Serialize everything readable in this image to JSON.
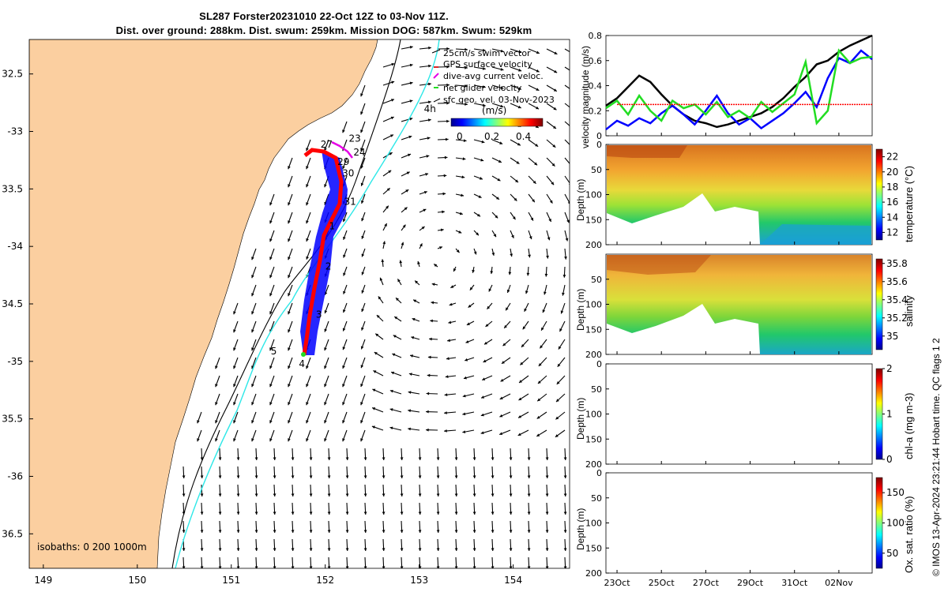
{
  "title_line1": "SL287 Forster20231010 22-Oct 12Z to 03-Nov 11Z.",
  "title_line2": "Dist. over ground: 288km. Dist. swum: 259km. Mission DOG: 587km. Swum: 529km",
  "footnote": "© IMOS 13-Apr-2024 23:21:44 Hobart time. QC flags 1  2",
  "map": {
    "xticks": [
      149,
      150,
      151,
      152,
      153,
      154
    ],
    "xtick_labels": [
      "149",
      "150",
      "151",
      "152",
      "153",
      "154"
    ],
    "yticks": [
      -32.5,
      -33,
      -33.5,
      -34,
      -34.5,
      -35,
      -35.5,
      -36,
      -36.5
    ],
    "ytick_labels": [
      "32.5",
      "-33",
      "33.5",
      "-34",
      "34.5",
      "-35",
      "35.5",
      "-36",
      "36.5"
    ],
    "xlim": [
      148.85,
      154.6
    ],
    "ylim": [
      -36.8,
      -32.2
    ],
    "isobath_label": "isobaths: 0   200  1000m",
    "legend": [
      {
        "label": "25cm/s swim vector",
        "color": "#000000"
      },
      {
        "label": "GPS surface velocity",
        "color": "#d62728"
      },
      {
        "label": "dive-avg current veloc.",
        "color": "#e600e6"
      },
      {
        "label": "net glider velocity",
        "color": "#22dd22"
      },
      {
        "label": "sfc geo. vel. 03-Nov-2023",
        "color": "#000000"
      }
    ],
    "colorbar": {
      "label": "(m/s)",
      "ticks": [
        "0",
        "0.2",
        "0.4"
      ]
    },
    "day_labels": [
      {
        "text": "23",
        "lon": 152.25,
        "lat": -33.09
      },
      {
        "text": "24",
        "lon": 152.3,
        "lat": -33.21
      },
      {
        "text": "27",
        "lon": 151.95,
        "lat": -33.14
      },
      {
        "text": "29",
        "lon": 152.13,
        "lat": -33.29
      },
      {
        "text": "30",
        "lon": 152.18,
        "lat": -33.39
      },
      {
        "text": "31",
        "lon": 152.2,
        "lat": -33.64
      },
      {
        "text": "1",
        "lon": 152.04,
        "lat": -33.85
      },
      {
        "text": "2",
        "lon": 152.0,
        "lat": -34.2
      },
      {
        "text": "3",
        "lon": 151.9,
        "lat": -34.62
      },
      {
        "text": "4",
        "lon": 151.72,
        "lat": -35.05
      },
      {
        "text": "5",
        "lon": 151.42,
        "lat": -34.94
      },
      {
        "text": "4h",
        "lon": 153.05,
        "lat": -32.83
      }
    ]
  },
  "chart_data": [
    {
      "type": "line",
      "title": "",
      "xlabel": "",
      "ylabel": "velocity magnitude (m/s)",
      "ylim": [
        0,
        0.8
      ],
      "yticks": [
        "0",
        "0.2",
        "0.4",
        "0.6",
        "0.8"
      ],
      "xlim_days": [
        22.5,
        34.5
      ],
      "series": [
        {
          "name": "sfc geo. speed",
          "color": "#000000",
          "x": [
            22.5,
            23.0,
            23.5,
            24.0,
            24.5,
            25.0,
            25.5,
            26.0,
            26.5,
            27.0,
            27.5,
            28.0,
            28.5,
            29.0,
            29.5,
            30.0,
            30.5,
            31.0,
            31.5,
            32.0,
            32.5,
            33.0,
            33.5,
            34.0,
            34.5
          ],
          "y": [
            0.24,
            0.3,
            0.39,
            0.48,
            0.43,
            0.33,
            0.24,
            0.17,
            0.12,
            0.1,
            0.07,
            0.09,
            0.12,
            0.15,
            0.18,
            0.23,
            0.3,
            0.39,
            0.47,
            0.57,
            0.6,
            0.67,
            0.72,
            0.76,
            0.8
          ]
        },
        {
          "name": "dive-avg current",
          "color": "#0000ff",
          "x": [
            22.5,
            23.0,
            23.5,
            24.0,
            24.5,
            25.0,
            25.5,
            26.0,
            26.5,
            27.0,
            27.5,
            28.0,
            28.5,
            29.0,
            29.5,
            30.0,
            30.5,
            31.0,
            31.5,
            32.0,
            32.5,
            33.0,
            33.5,
            34.0,
            34.5
          ],
          "y": [
            0.05,
            0.12,
            0.08,
            0.14,
            0.1,
            0.18,
            0.24,
            0.17,
            0.09,
            0.2,
            0.32,
            0.18,
            0.09,
            0.14,
            0.06,
            0.12,
            0.18,
            0.26,
            0.35,
            0.23,
            0.46,
            0.62,
            0.58,
            0.68,
            0.61
          ]
        },
        {
          "name": "net glider velocity",
          "color": "#22dd22",
          "x": [
            22.5,
            23.0,
            23.5,
            24.0,
            24.5,
            25.0,
            25.5,
            26.0,
            26.5,
            27.0,
            27.5,
            28.0,
            28.5,
            29.0,
            29.5,
            30.0,
            30.5,
            31.0,
            31.5,
            32.0,
            32.5,
            33.0,
            33.5,
            34.0,
            34.5
          ],
          "y": [
            0.22,
            0.28,
            0.17,
            0.32,
            0.2,
            0.12,
            0.28,
            0.22,
            0.25,
            0.17,
            0.27,
            0.15,
            0.2,
            0.14,
            0.27,
            0.19,
            0.26,
            0.33,
            0.59,
            0.1,
            0.2,
            0.68,
            0.58,
            0.62,
            0.63
          ]
        },
        {
          "name": "threshold",
          "color": "#ff0000",
          "x": [
            23.0,
            34.5
          ],
          "y": [
            0.25,
            0.25
          ]
        }
      ]
    },
    {
      "type": "heatmap",
      "ylabel": "Depth (m)",
      "colorbar_label": "temperature (°C)",
      "yticks": [
        "0",
        "50",
        "100",
        "150",
        "200"
      ],
      "cbar_ticks": [
        "12",
        "14",
        "16",
        "18",
        "20",
        "22"
      ],
      "clim": [
        11,
        23
      ]
    },
    {
      "type": "heatmap",
      "ylabel": "Depth (m)",
      "colorbar_label": "salinity",
      "yticks": [
        "50",
        "100",
        "150",
        "200"
      ],
      "cbar_ticks": [
        "35",
        "35.2",
        "35.4",
        "35.6",
        "35.8"
      ],
      "clim": [
        34.85,
        35.85
      ]
    },
    {
      "type": "heatmap",
      "ylabel": "Depth (m)",
      "colorbar_label": "chl-a (mg m-3)",
      "yticks": [
        "0",
        "50",
        "100",
        "150",
        "200"
      ],
      "cbar_ticks": [
        "0",
        "1",
        "2"
      ],
      "clim": [
        0,
        2
      ]
    },
    {
      "type": "heatmap",
      "ylabel": "Depth (m)",
      "colorbar_label": "Ox. sat. ratio (%)",
      "yticks": [
        "0",
        "50",
        "100",
        "150",
        "200"
      ],
      "cbar_ticks": [
        "50",
        "100",
        "150"
      ],
      "clim": [
        25,
        175
      ]
    }
  ],
  "time_ticks": [
    "23Oct",
    "25Oct",
    "27Oct",
    "29Oct",
    "31Oct",
    "02Nov"
  ],
  "colors": {
    "land": "#fbcfa0",
    "ocean": "#ffffff",
    "isobath200": "#000000",
    "isobath1000": "#2ee8e8"
  }
}
